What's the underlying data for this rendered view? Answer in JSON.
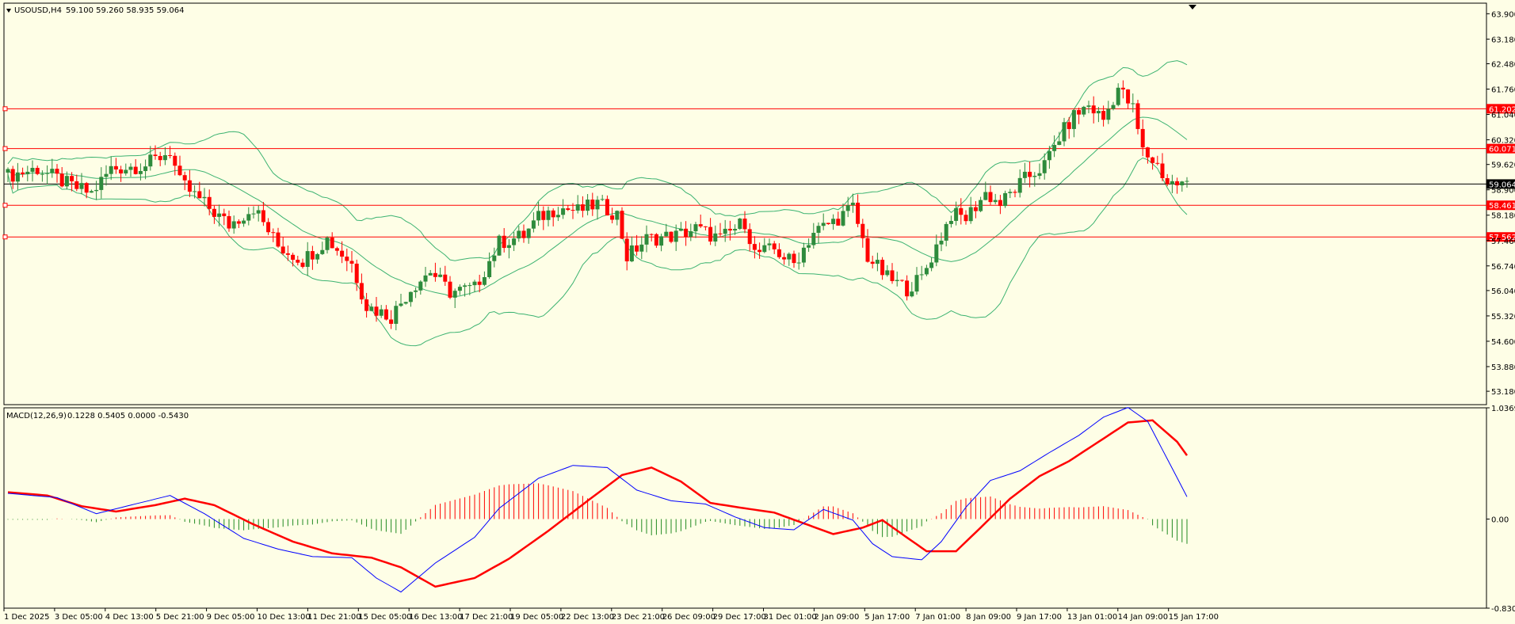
{
  "header": {
    "symbol_label": "USOUSD,H4",
    "ohlc_label": "59.100 59.260 58.935 59.064"
  },
  "macd": {
    "label": "MACD(12,26,9)",
    "values_label": "0.1228 0.5405 0.0000 -0.5430"
  },
  "colors": {
    "background": "#fefee6",
    "bull_candle": "#2e8b3c",
    "bear_candle": "#ff0000",
    "bollinger": "#3cb371",
    "level_line": "#ff0000",
    "price_line": "#000000",
    "macd_line": "#0000ff",
    "signal_line": "#ff0000",
    "hist_positive": "#ff0000",
    "hist_negative": "#228b22"
  },
  "chart_data": [
    {
      "type": "candlestick",
      "title": "USOUSD,H4",
      "ylim": [
        52.8,
        64.2
      ],
      "y_ticks": [
        "63.900",
        "63.180",
        "62.480",
        "61.760",
        "61.040",
        "60.320",
        "59.620",
        "58.900",
        "58.180",
        "57.460",
        "56.740",
        "56.040",
        "55.320",
        "54.600",
        "53.880",
        "53.180"
      ],
      "x_ticks": [
        "1 Dec 2025",
        "3 Dec 05:00",
        "4 Dec 13:00",
        "5 Dec 21:00",
        "9 Dec 05:00",
        "10 Dec 13:00",
        "11 Dec 21:00",
        "15 Dec 05:00",
        "16 Dec 13:00",
        "17 Dec 21:00",
        "19 Dec 05:00",
        "22 Dec 13:00",
        "23 Dec 21:00",
        "26 Dec 09:00",
        "29 Dec 17:00",
        "31 Dec 01:00",
        "2 Jan 09:00",
        "5 Jan 17:00",
        "7 Jan 01:00",
        "8 Jan 09:00",
        "9 Jan 17:00",
        "13 Jan 01:00",
        "14 Jan 09:00",
        "15 Jan 17:00"
      ],
      "close_path": [
        [
          0,
          59.3
        ],
        [
          6,
          59.5
        ],
        [
          13,
          59.0
        ],
        [
          17,
          58.8
        ],
        [
          21,
          59.5
        ],
        [
          28,
          59.6
        ],
        [
          33,
          60.0
        ],
        [
          35,
          59.1
        ],
        [
          40,
          58.5
        ],
        [
          45,
          57.9
        ],
        [
          50,
          58.4
        ],
        [
          55,
          57.3
        ],
        [
          60,
          56.9
        ],
        [
          65,
          57.5
        ],
        [
          70,
          56.8
        ],
        [
          73,
          55.6
        ],
        [
          78,
          55.3
        ],
        [
          82,
          56.1
        ],
        [
          86,
          56.6
        ],
        [
          90,
          56.0
        ],
        [
          95,
          56.1
        ],
        [
          100,
          57.4
        ],
        [
          105,
          57.6
        ],
        [
          108,
          58.1
        ],
        [
          112,
          58.4
        ],
        [
          116,
          58.3
        ],
        [
          120,
          58.5
        ],
        [
          124,
          58.2
        ],
        [
          126,
          57.0
        ],
        [
          130,
          57.5
        ],
        [
          136,
          57.6
        ],
        [
          140,
          57.8
        ],
        [
          145,
          57.5
        ],
        [
          150,
          58.0
        ],
        [
          152,
          57.1
        ],
        [
          156,
          57.2
        ],
        [
          160,
          56.8
        ],
        [
          164,
          57.7
        ],
        [
          168,
          58.0
        ],
        [
          172,
          58.4
        ],
        [
          175,
          57.0
        ],
        [
          179,
          56.4
        ],
        [
          183,
          56.1
        ],
        [
          186,
          56.4
        ],
        [
          189,
          57.3
        ],
        [
          192,
          58.2
        ],
        [
          195,
          58.1
        ],
        [
          199,
          58.8
        ],
        [
          202,
          58.5
        ],
        [
          207,
          59.2
        ],
        [
          211,
          59.6
        ],
        [
          214,
          60.4
        ],
        [
          217,
          61.0
        ],
        [
          220,
          61.3
        ],
        [
          223,
          60.9
        ],
        [
          226,
          61.8
        ],
        [
          229,
          61.2
        ],
        [
          231,
          60.0
        ],
        [
          234,
          59.6
        ],
        [
          236,
          59.1
        ],
        [
          239,
          59.06
        ]
      ],
      "levels": [
        61.202,
        60.071,
        58.461,
        57.562
      ],
      "current_price": 59.064,
      "bollinger_bands": "on",
      "grid": "off"
    },
    {
      "type": "line",
      "title": "MACD(12,26,9)",
      "ylim": [
        -0.8307,
        1.0369
      ],
      "y_ticks": [
        "1.0369",
        "0.00",
        "-0.8307"
      ],
      "series": [
        {
          "values_path": [
            [
              0,
              0.24
            ],
            [
              10,
              0.2
            ],
            [
              18,
              0.05
            ],
            [
              25,
              0.13
            ],
            [
              33,
              0.22
            ],
            [
              40,
              0.05
            ],
            [
              48,
              -0.18
            ],
            [
              55,
              -0.28
            ],
            [
              62,
              -0.35
            ],
            [
              70,
              -0.36
            ],
            [
              75,
              -0.55
            ],
            [
              80,
              -0.68
            ],
            [
              87,
              -0.41
            ],
            [
              95,
              -0.17
            ],
            [
              100,
              0.1
            ],
            [
              108,
              0.38
            ],
            [
              115,
              0.5
            ],
            [
              122,
              0.48
            ],
            [
              128,
              0.27
            ],
            [
              135,
              0.17
            ],
            [
              142,
              0.14
            ],
            [
              148,
              0.02
            ],
            [
              154,
              -0.08
            ],
            [
              160,
              -0.1
            ],
            [
              166,
              0.09
            ],
            [
              172,
              -0.01
            ],
            [
              176,
              -0.23
            ],
            [
              180,
              -0.35
            ],
            [
              186,
              -0.38
            ],
            [
              190,
              -0.21
            ],
            [
              195,
              0.11
            ],
            [
              200,
              0.36
            ],
            [
              206,
              0.45
            ],
            [
              212,
              0.62
            ],
            [
              218,
              0.78
            ],
            [
              223,
              0.95
            ],
            [
              228,
              1.04
            ],
            [
              232,
              0.91
            ],
            [
              236,
              0.56
            ],
            [
              241,
              0.12
            ]
          ]
        },
        {
          "values_path": [
            [
              0,
              0.25
            ],
            [
              8,
              0.22
            ],
            [
              15,
              0.12
            ],
            [
              22,
              0.07
            ],
            [
              30,
              0.13
            ],
            [
              36,
              0.19
            ],
            [
              42,
              0.13
            ],
            [
              50,
              -0.05
            ],
            [
              58,
              -0.21
            ],
            [
              66,
              -0.32
            ],
            [
              74,
              -0.36
            ],
            [
              80,
              -0.45
            ],
            [
              87,
              -0.63
            ],
            [
              95,
              -0.55
            ],
            [
              102,
              -0.37
            ],
            [
              110,
              -0.11
            ],
            [
              118,
              0.17
            ],
            [
              125,
              0.41
            ],
            [
              131,
              0.48
            ],
            [
              137,
              0.35
            ],
            [
              143,
              0.15
            ],
            [
              150,
              0.1
            ],
            [
              156,
              0.06
            ],
            [
              162,
              -0.04
            ],
            [
              168,
              -0.14
            ],
            [
              174,
              -0.08
            ],
            [
              178,
              -0.01
            ],
            [
              182,
              -0.14
            ],
            [
              187,
              -0.3
            ],
            [
              193,
              -0.3
            ],
            [
              198,
              -0.08
            ],
            [
              204,
              0.19
            ],
            [
              210,
              0.4
            ],
            [
              216,
              0.54
            ],
            [
              222,
              0.72
            ],
            [
              228,
              0.9
            ],
            [
              233,
              0.92
            ],
            [
              238,
              0.72
            ],
            [
              241,
              0.53
            ]
          ]
        }
      ]
    }
  ]
}
